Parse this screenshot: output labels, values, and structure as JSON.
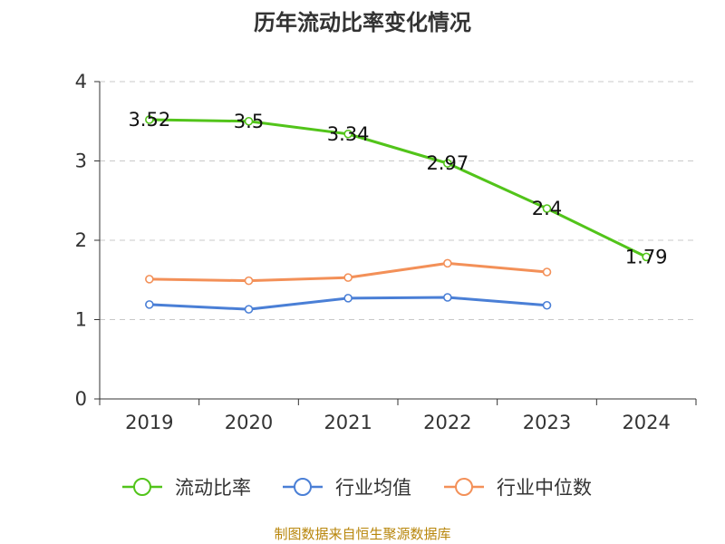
{
  "chart_data": {
    "type": "line",
    "title": "历年流动比率变化情况",
    "categories": [
      "2019",
      "2020",
      "2021",
      "2022",
      "2023",
      "2024"
    ],
    "yticks": [
      "0",
      "1",
      "2",
      "3",
      "4"
    ],
    "ylim": [
      0,
      4
    ],
    "grid": true,
    "legend_position": "bottom",
    "series": [
      {
        "name": "流动比率",
        "color": "#52c41a",
        "values": [
          3.52,
          3.5,
          3.34,
          2.97,
          2.4,
          1.79
        ],
        "labels": [
          "3.52",
          "3.5",
          "3.34",
          "2.97",
          "2.4",
          "1.79"
        ]
      },
      {
        "name": "行业均值",
        "color": "#4a7fd6",
        "values": [
          1.19,
          1.13,
          1.27,
          1.28,
          1.18,
          null
        ]
      },
      {
        "name": "行业中位数",
        "color": "#f39058",
        "values": [
          1.51,
          1.49,
          1.53,
          1.71,
          1.6,
          null
        ]
      }
    ]
  },
  "source": "制图数据来自恒生聚源数据库"
}
